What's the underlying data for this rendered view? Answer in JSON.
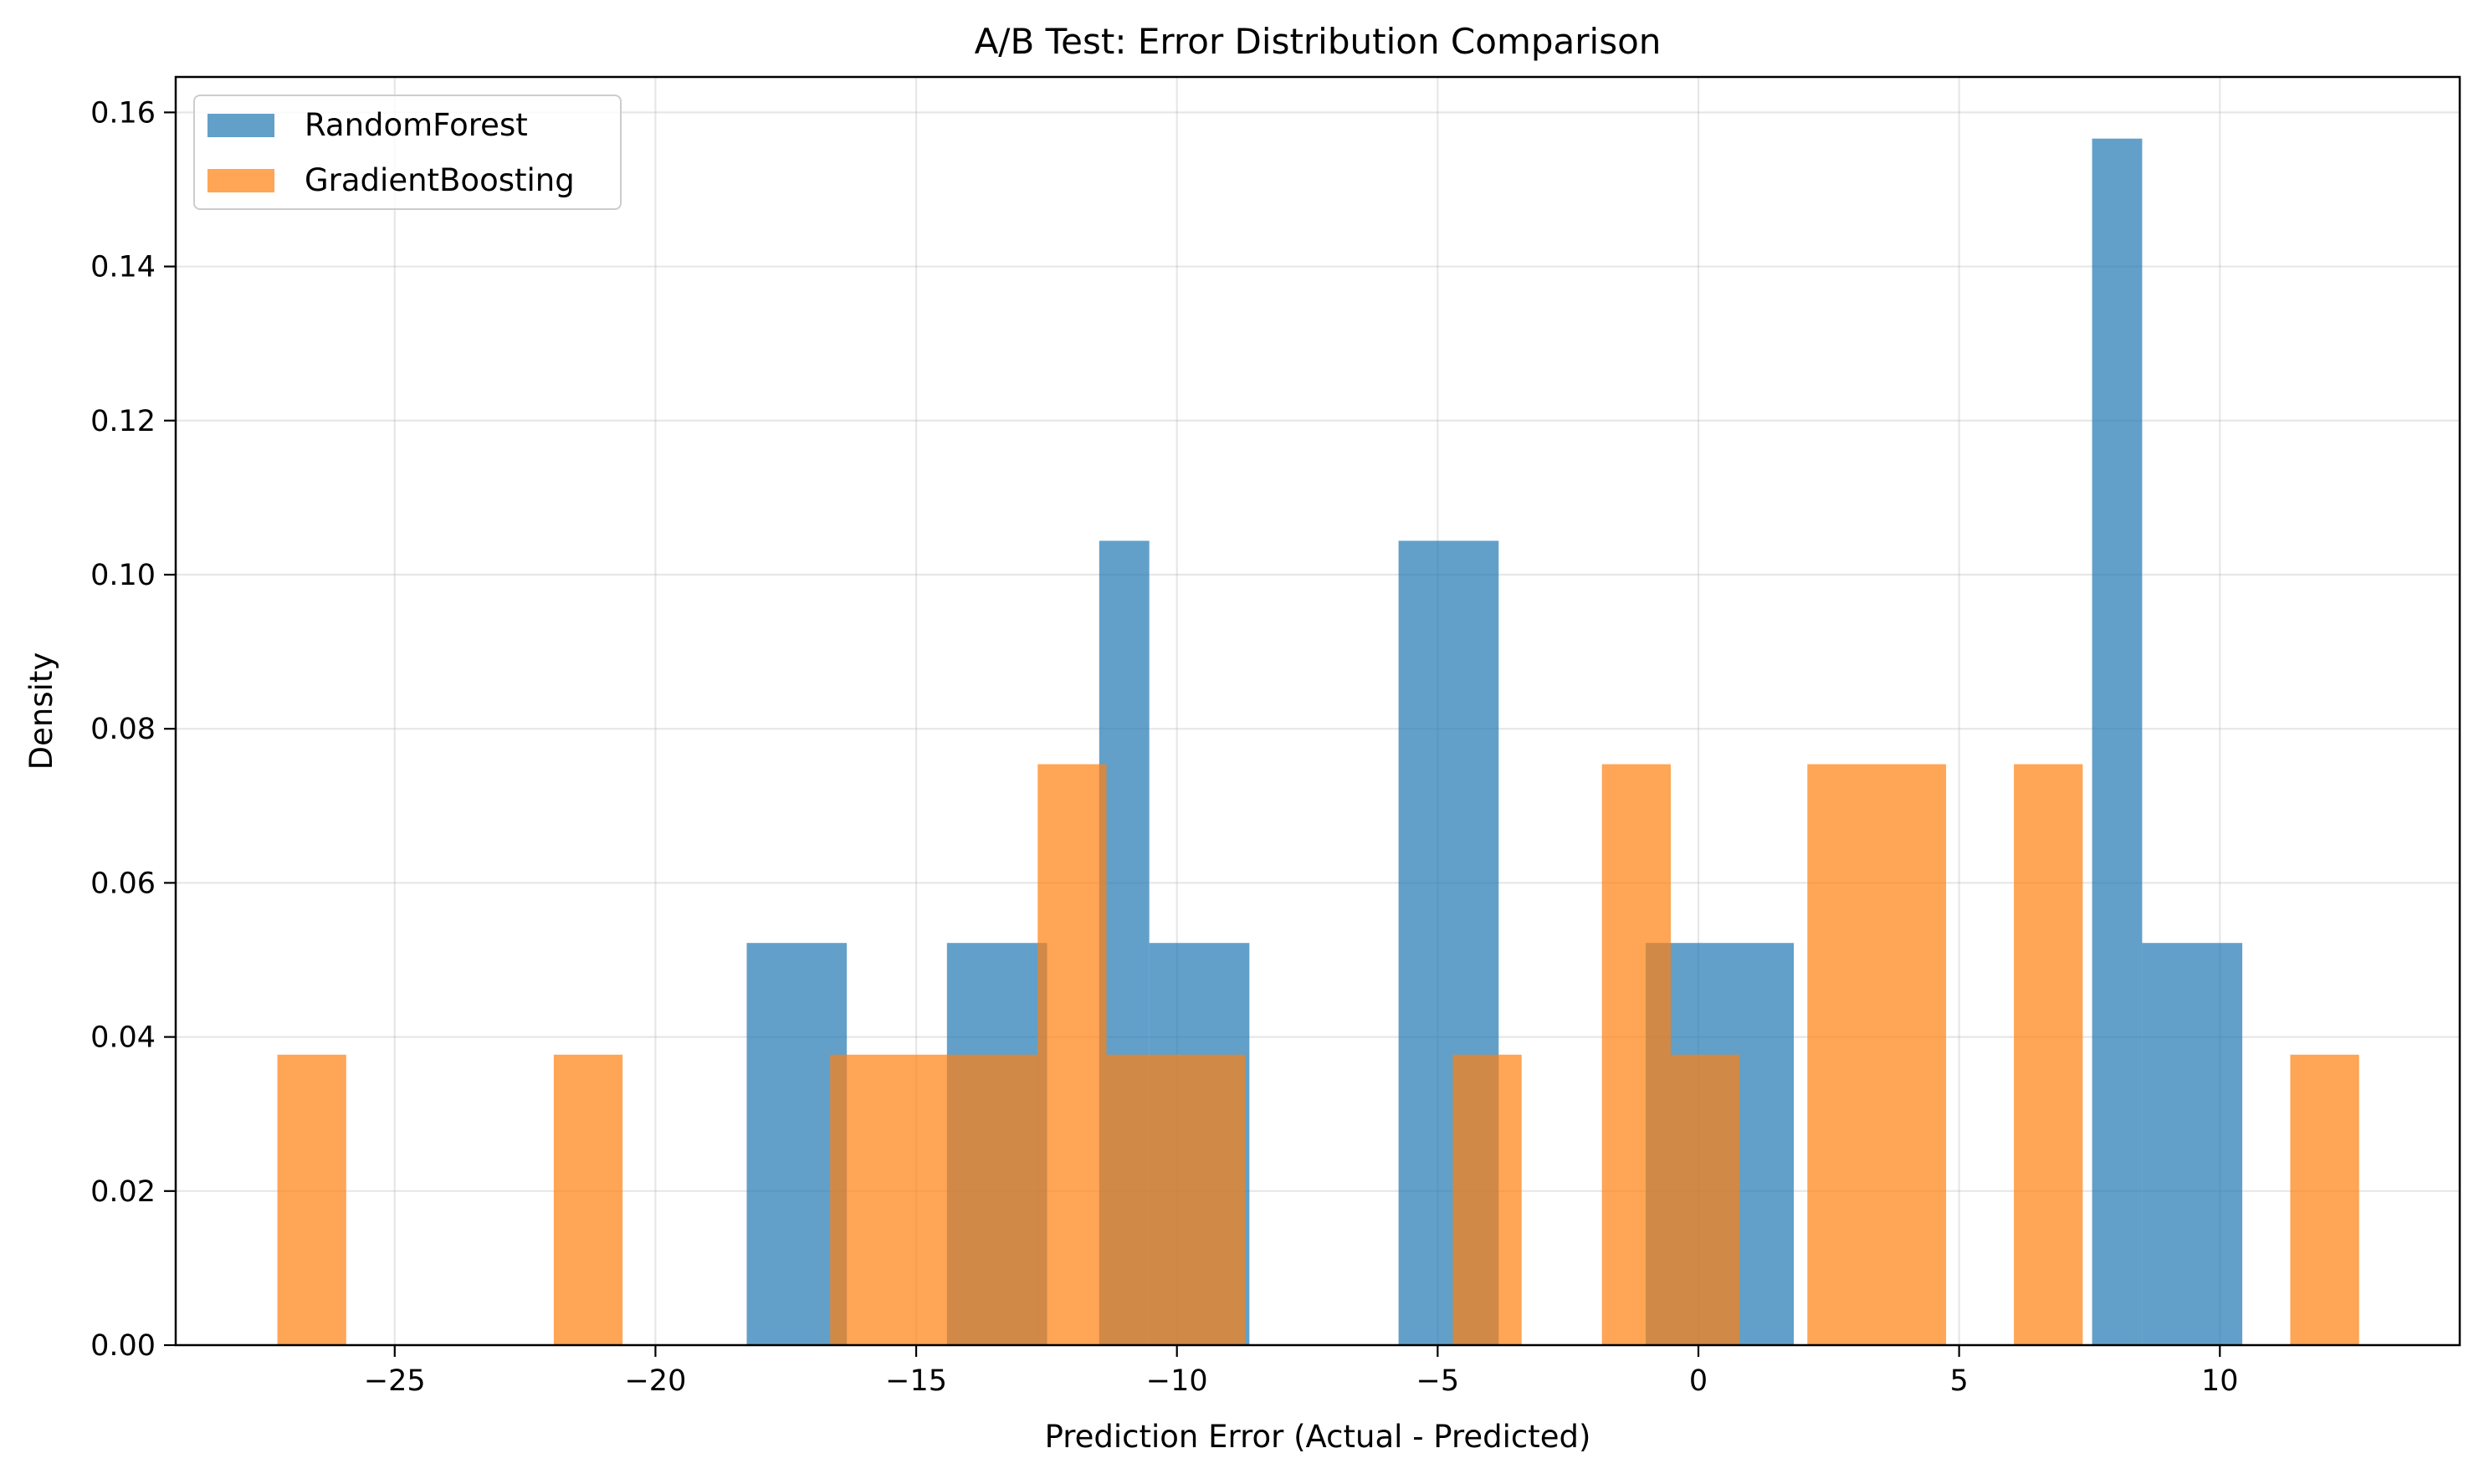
{
  "chart_data": {
    "type": "bar",
    "title": "A/B Test: Error Distribution Comparison",
    "xlabel": "Prediction Error (Actual - Predicted)",
    "ylabel": "Density",
    "xlim": [
      -29.2,
      14.6
    ],
    "ylim": [
      0,
      0.1646
    ],
    "xticks": [
      -25,
      -20,
      -15,
      -10,
      -5,
      0,
      5,
      10
    ],
    "xtick_labels": [
      "−25",
      "−20",
      "−15",
      "−10",
      "−5",
      "0",
      "5",
      "10"
    ],
    "yticks": [
      0.0,
      0.02,
      0.04,
      0.06,
      0.08,
      0.1,
      0.12,
      0.14,
      0.16
    ],
    "ytick_labels": [
      "0.00",
      "0.02",
      "0.04",
      "0.06",
      "0.08",
      "0.10",
      "0.12",
      "0.14",
      "0.16"
    ],
    "grid": true,
    "legend_position": "top-left",
    "series": [
      {
        "name": "RandomForest",
        "color": "#1f77b4",
        "opacity": 0.7,
        "bins": [
          {
            "x0": -18.25,
            "x1": -16.33,
            "value": 0.0522
          },
          {
            "x0": -14.41,
            "x1": -12.49,
            "value": 0.0522
          },
          {
            "x0": -11.49,
            "x1": -10.53,
            "value": 0.1044
          },
          {
            "x0": -10.53,
            "x1": -8.61,
            "value": 0.0522
          },
          {
            "x0": -5.75,
            "x1": -3.83,
            "value": 0.1044
          },
          {
            "x0": -1.01,
            "x1": 1.83,
            "value": 0.0522
          },
          {
            "x0": 7.55,
            "x1": 8.51,
            "value": 0.1566
          },
          {
            "x0": 8.51,
            "x1": 10.43,
            "value": 0.0522
          }
        ]
      },
      {
        "name": "GradientBoosting",
        "color": "#ff7f0e",
        "opacity": 0.7,
        "bins": [
          {
            "x0": -27.25,
            "x1": -25.93,
            "value": 0.0377
          },
          {
            "x0": -21.95,
            "x1": -20.63,
            "value": 0.0377
          },
          {
            "x0": -16.65,
            "x1": -12.67,
            "value": 0.0377
          },
          {
            "x0": -12.67,
            "x1": -11.35,
            "value": 0.0754
          },
          {
            "x0": -11.35,
            "x1": -8.69,
            "value": 0.0377
          },
          {
            "x0": -4.71,
            "x1": -3.39,
            "value": 0.0377
          },
          {
            "x0": -1.85,
            "x1": -0.53,
            "value": 0.0754
          },
          {
            "x0": -0.53,
            "x1": 0.79,
            "value": 0.0377
          },
          {
            "x0": 2.09,
            "x1": 4.75,
            "value": 0.0754
          },
          {
            "x0": 6.05,
            "x1": 7.37,
            "value": 0.0754
          },
          {
            "x0": 11.35,
            "x1": 12.67,
            "value": 0.0377
          }
        ]
      }
    ]
  }
}
